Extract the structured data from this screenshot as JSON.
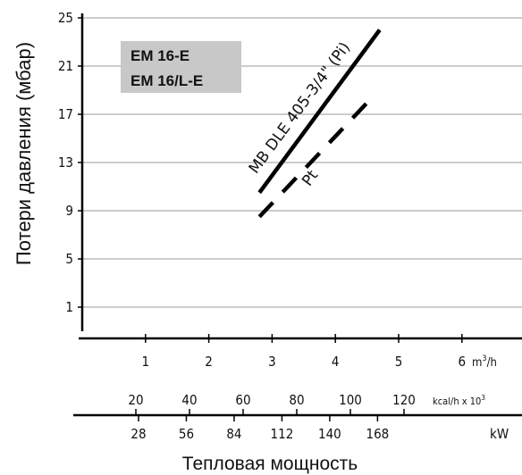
{
  "chart_data": {
    "type": "line",
    "ylabel": "Потери давления (мбар)",
    "xlabel": "Тепловая мощность",
    "ylim": [
      -1,
      25
    ],
    "y_ticks": [
      1,
      5,
      9,
      13,
      17,
      21,
      25
    ],
    "grid": true,
    "axis_m3h": {
      "unit": "m³/h",
      "unit_base": "m",
      "unit_exp": "3",
      "unit_tail": "/h",
      "range": [
        0,
        6.5
      ],
      "ticks": [
        1,
        2,
        3,
        4,
        5,
        6
      ]
    },
    "axis_kcal": {
      "unit_base": "kcal/h x 10",
      "unit_exp": "3",
      "ticks": [
        20,
        40,
        60,
        80,
        100,
        120
      ]
    },
    "axis_kw": {
      "unit": "kW",
      "ticks": [
        28,
        56,
        84,
        112,
        140,
        168
      ]
    },
    "legend_box": {
      "lines": [
        "EM 16-E",
        "EM 16/L-E"
      ],
      "placement": "top-left"
    },
    "series": [
      {
        "name": "MB DLE 405-3/4\" (Pi)",
        "style": "solid",
        "x": [
          2.8,
          4.7
        ],
        "y": [
          10.5,
          24
        ]
      },
      {
        "name": "Pt",
        "style": "dashed",
        "x": [
          2.8,
          4.6
        ],
        "y": [
          8.5,
          18.5
        ]
      }
    ],
    "colors": {
      "line": "#000000",
      "grid": "#999999",
      "box": "#c8c8c8"
    }
  }
}
